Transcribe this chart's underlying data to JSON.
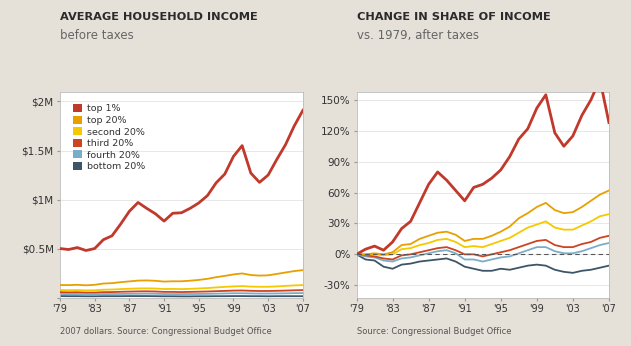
{
  "background_color": "#e5e0d8",
  "title1": "AVERAGE HOUSEHOLD INCOME",
  "subtitle1": "before taxes",
  "title2": "CHANGE IN SHARE OF INCOME",
  "subtitle2": "vs. 1979, after taxes",
  "source1": "2007 dollars. Source: Congressional Budget Office",
  "source2": "Source: Congressional Budget Office",
  "years": [
    1979,
    1980,
    1981,
    1982,
    1983,
    1984,
    1985,
    1986,
    1987,
    1988,
    1989,
    1990,
    1991,
    1992,
    1993,
    1994,
    1995,
    1996,
    1997,
    1998,
    1999,
    2000,
    2001,
    2002,
    2003,
    2004,
    2005,
    2006,
    2007
  ],
  "colors": {
    "top1": "#c0392b",
    "top20": "#e8a000",
    "second20": "#f5c800",
    "third20": "#cc4422",
    "fourth20": "#7aaec8",
    "bottom20": "#3d5566"
  },
  "legend_labels": [
    "top 1%",
    "top 20%",
    "second 20%",
    "third 20%",
    "fourth 20%",
    "bottom 20%"
  ],
  "legend_colors": [
    "#c0392b",
    "#e8a000",
    "#f5c800",
    "#cc4422",
    "#7aaec8",
    "#3d5566"
  ],
  "left_top1": [
    500000,
    490000,
    510000,
    480000,
    500000,
    590000,
    630000,
    750000,
    880000,
    970000,
    910000,
    855000,
    780000,
    860000,
    865000,
    910000,
    965000,
    1040000,
    1170000,
    1260000,
    1440000,
    1550000,
    1270000,
    1175000,
    1250000,
    1410000,
    1560000,
    1750000,
    1910000
  ],
  "left_top20": [
    128000,
    127000,
    130000,
    125000,
    130000,
    143000,
    147000,
    157000,
    165000,
    173000,
    175000,
    171000,
    163000,
    166000,
    166000,
    172000,
    180000,
    191000,
    208000,
    221000,
    236000,
    246000,
    230000,
    224000,
    227000,
    241000,
    256000,
    270000,
    280000
  ],
  "left_second20": [
    76000,
    75000,
    76000,
    73000,
    74000,
    80000,
    82000,
    86000,
    90000,
    93000,
    94000,
    92000,
    87000,
    88000,
    86000,
    89000,
    93000,
    97000,
    103000,
    109000,
    114000,
    117000,
    112000,
    110000,
    110000,
    114000,
    119000,
    124000,
    127000
  ],
  "left_third20": [
    55000,
    53000,
    54000,
    51000,
    51000,
    55000,
    56000,
    59000,
    61000,
    63000,
    64000,
    62000,
    58000,
    58000,
    56000,
    58000,
    60000,
    62000,
    65000,
    68000,
    71000,
    72000,
    69000,
    67000,
    67000,
    69000,
    71000,
    74000,
    76000
  ],
  "left_fourth20": [
    36000,
    35000,
    35000,
    33000,
    33000,
    35000,
    36000,
    37000,
    38000,
    39000,
    40000,
    39000,
    36000,
    36000,
    35000,
    36000,
    37000,
    38000,
    40000,
    42000,
    44000,
    44000,
    42000,
    41000,
    41000,
    42000,
    43000,
    45000,
    46000
  ],
  "left_bottom20": [
    15000,
    14000,
    14000,
    13000,
    13000,
    14000,
    14000,
    14000,
    15000,
    15000,
    15000,
    14000,
    13000,
    13000,
    12000,
    12000,
    13000,
    13000,
    14000,
    14000,
    15000,
    15000,
    14000,
    14000,
    13000,
    14000,
    14000,
    14000,
    14000
  ],
  "right_top1": [
    0,
    5,
    8,
    4,
    12,
    25,
    32,
    50,
    68,
    80,
    72,
    62,
    52,
    65,
    68,
    74,
    82,
    95,
    112,
    122,
    142,
    155,
    118,
    105,
    115,
    135,
    150,
    170,
    128
  ],
  "right_top20": [
    0,
    0,
    1,
    0,
    2,
    9,
    10,
    15,
    18,
    21,
    22,
    19,
    13,
    15,
    15,
    18,
    22,
    27,
    35,
    40,
    46,
    50,
    43,
    40,
    41,
    46,
    52,
    58,
    62
  ],
  "right_second20": [
    0,
    0,
    0,
    -1,
    0,
    5,
    6,
    9,
    11,
    14,
    15,
    12,
    7,
    8,
    7,
    10,
    13,
    16,
    21,
    26,
    29,
    32,
    26,
    24,
    24,
    28,
    32,
    37,
    39
  ],
  "right_third20": [
    0,
    -1,
    -2,
    -4,
    -5,
    -1,
    0,
    2,
    4,
    6,
    7,
    4,
    0,
    0,
    -2,
    0,
    2,
    4,
    7,
    10,
    13,
    14,
    9,
    7,
    7,
    10,
    12,
    16,
    18
  ],
  "right_fourth20": [
    0,
    -2,
    -3,
    -6,
    -7,
    -4,
    -3,
    -1,
    1,
    3,
    4,
    1,
    -5,
    -5,
    -7,
    -5,
    -3,
    -2,
    1,
    4,
    7,
    7,
    3,
    1,
    1,
    3,
    6,
    9,
    11
  ],
  "right_bottom20": [
    0,
    -5,
    -6,
    -12,
    -14,
    -10,
    -9,
    -7,
    -6,
    -5,
    -4,
    -7,
    -12,
    -14,
    -16,
    -16,
    -14,
    -15,
    -13,
    -11,
    -10,
    -11,
    -15,
    -17,
    -18,
    -16,
    -15,
    -13,
    -11
  ]
}
